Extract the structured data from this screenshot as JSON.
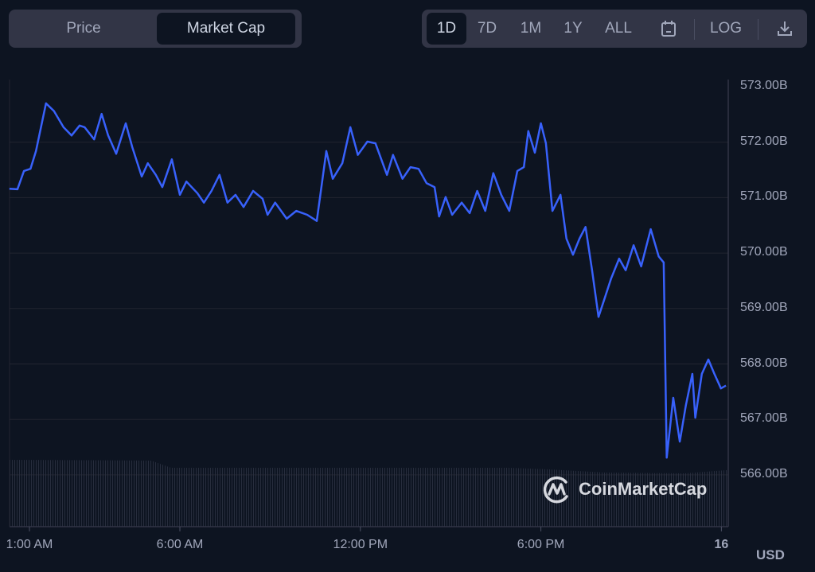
{
  "toggle": {
    "price_label": "Price",
    "market_cap_label": "Market Cap",
    "selected": "Market Cap"
  },
  "ranges": {
    "items": [
      "1D",
      "7D",
      "1M",
      "1Y",
      "ALL"
    ],
    "selected": "1D",
    "log_label": "LOG",
    "calendar_icon": "calendar-icon",
    "download_icon": "download-icon"
  },
  "watermark": "CoinMarketCap",
  "currency": "USD",
  "colors": {
    "line": "#3861fb",
    "background": "#0d1421",
    "grid": "#222531"
  },
  "chart_data": {
    "type": "line",
    "title": "",
    "xlabel": "",
    "ylabel": "",
    "y_tick_labels": [
      "573.00B",
      "572.00B",
      "571.00B",
      "570.00B",
      "569.00B",
      "568.00B",
      "567.00B",
      "566.00B"
    ],
    "y_ticks": [
      573,
      572,
      571,
      570,
      569,
      568,
      567,
      566
    ],
    "x_tick_labels": [
      "1:00 AM",
      "6:00 AM",
      "12:00 PM",
      "6:00 PM",
      "16"
    ],
    "x_ticks": [
      "01:00",
      "06:00",
      "12:00",
      "18:00",
      "24:00"
    ],
    "y_unit": "B USD",
    "y_axis_position": "right",
    "grid": "horizontal",
    "series": [
      {
        "x": [
          "00:20",
          "00:36",
          "00:49",
          "01:02",
          "01:13",
          "01:33",
          "01:49",
          "02:08",
          "02:24",
          "02:40",
          "02:50",
          "03:09",
          "03:24",
          "03:37",
          "03:53",
          "04:12",
          "04:25",
          "04:44",
          "04:56",
          "05:12",
          "05:25",
          "05:44",
          "06:00",
          "06:13",
          "06:35",
          "06:48",
          "07:03",
          "07:19",
          "07:35",
          "07:51",
          "08:07",
          "08:26",
          "08:45",
          "08:55",
          "09:10",
          "09:33",
          "09:52",
          "10:14",
          "10:33",
          "10:52",
          "11:05",
          "11:24",
          "11:40",
          "11:55",
          "12:14",
          "12:30",
          "12:53",
          "13:05",
          "13:24",
          "13:40",
          "13:56",
          "14:12",
          "14:28",
          "14:37",
          "14:50",
          "15:03",
          "15:22",
          "15:38",
          "15:53",
          "16:09",
          "16:25",
          "16:41",
          "16:57",
          "17:13",
          "17:26",
          "17:35",
          "17:48",
          "18:00",
          "18:10",
          "18:23",
          "18:39",
          "18:51",
          "19:04",
          "19:17",
          "19:29",
          "19:42",
          "19:55",
          "20:07",
          "20:20",
          "20:36",
          "20:49",
          "21:05",
          "21:20",
          "21:39",
          "21:55",
          "22:05",
          "22:11",
          "22:24",
          "22:37",
          "22:49",
          "23:02",
          "23:08",
          "23:21",
          "23:34",
          "23:46",
          "23:59",
          "24:09"
        ],
        "values": [
          571.16,
          571.15,
          571.48,
          571.52,
          571.84,
          572.7,
          572.56,
          572.27,
          572.12,
          572.3,
          572.27,
          572.05,
          572.51,
          572.12,
          571.79,
          572.34,
          571.91,
          571.38,
          571.62,
          571.41,
          571.19,
          571.69,
          571.05,
          571.29,
          571.08,
          570.91,
          571.12,
          571.41,
          570.91,
          571.05,
          570.83,
          571.12,
          570.98,
          570.69,
          570.91,
          570.62,
          570.76,
          570.69,
          570.58,
          571.84,
          571.34,
          571.62,
          572.27,
          571.77,
          572.01,
          571.98,
          571.41,
          571.77,
          571.34,
          571.55,
          571.52,
          571.26,
          571.19,
          570.66,
          571.01,
          570.69,
          570.91,
          570.72,
          571.12,
          570.76,
          571.44,
          571.05,
          570.76,
          571.48,
          571.55,
          572.2,
          571.81,
          572.34,
          571.98,
          570.76,
          571.05,
          570.26,
          569.97,
          570.26,
          570.47,
          569.69,
          568.85,
          569.18,
          569.54,
          569.9,
          569.69,
          570.14,
          569.76,
          570.43,
          569.94,
          569.83,
          566.31,
          567.39,
          566.6,
          567.25,
          567.82,
          567.03,
          567.82,
          568.08,
          567.82,
          567.56,
          567.61
        ]
      }
    ]
  }
}
